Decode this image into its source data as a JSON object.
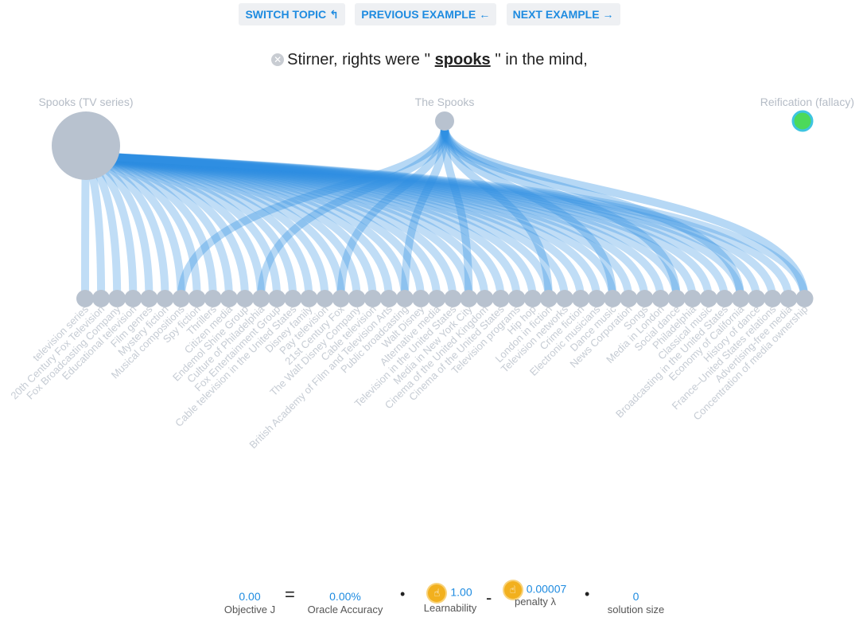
{
  "toolbar": {
    "switch_topic": "SWITCH TOPIC",
    "previous_example": "PREVIOUS EXAMPLE",
    "next_example": "NEXT EXAMPLE"
  },
  "sentence": {
    "before": "Stirner, rights were ''",
    "keyword": "spooks",
    "after": "'' in the mind,"
  },
  "top_nodes": [
    {
      "label": "Spooks (TV series)",
      "color": "#b8c2cf"
    },
    {
      "label": "The Spooks",
      "color": "#b8c2cf"
    },
    {
      "label": "Reification (fallacy)",
      "color": "#4cd95a",
      "border": "#3ec4e0"
    }
  ],
  "bottom_nodes": [
    "television series",
    "20th Century Fox Television",
    "Fox Broadcasting Company",
    "Educational television",
    "Film genres",
    "Mystery fiction",
    "Musical compositions",
    "Spy fiction",
    "Thrillers",
    "Citizen media",
    "Endemol Shine Group",
    "Culture of Philadelphia",
    "Fox Entertainment Group",
    "Cable television in the United States",
    "Disney family",
    "Pay television",
    "21st Century Fox",
    "The Walt Disney Company",
    "Cable television",
    "British Academy of Film and Television Arts",
    "Public broadcasting",
    "Walt Disney",
    "Alternative media",
    "Television in the United States",
    "Media in New York City",
    "Cinema of the United Kingdom",
    "Cinema of the United States",
    "Television programs",
    "Hip hop",
    "London in fiction",
    "Television networks",
    "Crime fiction",
    "Electronic musicians",
    "Dance music",
    "News Corporation",
    "Songs",
    "Media in London",
    "Social dance",
    "Philadelphia",
    "Classical music",
    "Broadcasting in the United States",
    "Economy of California",
    "History of dance",
    "France–United States relations",
    "Advertising-free media",
    "Concentration of media ownership"
  ],
  "metrics": {
    "objective_value": "0.00",
    "objective_label": "Objective J",
    "accuracy_value": "0.00%",
    "accuracy_label": "Oracle Accuracy",
    "learnability_value": "1.00",
    "learnability_label": "Learnability",
    "penalty_value": "0.00007",
    "penalty_label": "penalty λ",
    "size_value": "0",
    "size_label": "solution size"
  },
  "colors": {
    "edge": "#2e8fe2",
    "node": "#b8c2cf",
    "accent": "#1e8be0",
    "coin": "#f2b01e"
  }
}
